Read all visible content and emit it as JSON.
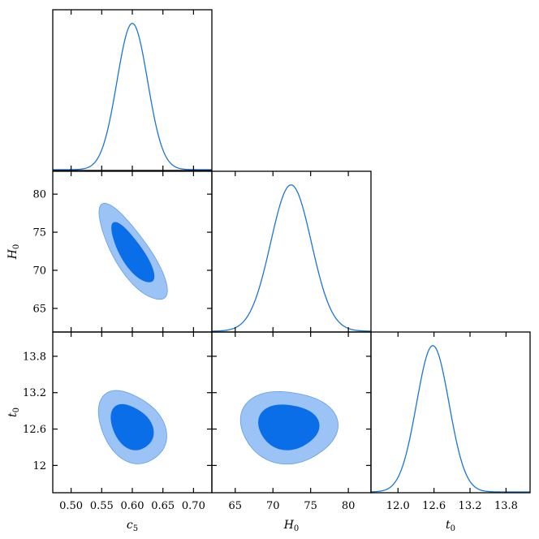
{
  "colors": {
    "line": "#1a76d8",
    "inner": "#0a6ee8",
    "outer": "#9cc3f5",
    "outer_edge": "#5f9fe8"
  },
  "chart_data": {
    "type": "triangle_corner_plot",
    "parameters": [
      {
        "key": "c5",
        "symbol": "c",
        "subscript": "5",
        "mean": 0.6,
        "sigma": 0.025,
        "range": [
          0.47,
          0.73
        ],
        "ticks": [
          0.5,
          0.55,
          0.6,
          0.65,
          0.7
        ],
        "tick_labels": [
          "0.50",
          "0.55",
          "0.60",
          "0.65",
          "0.70"
        ]
      },
      {
        "key": "H0",
        "symbol": "H",
        "subscript": "0",
        "mean": 72.4,
        "sigma": 2.7,
        "range": [
          61.9,
          83.0
        ],
        "ticks": [
          65,
          70,
          75,
          80
        ],
        "tick_labels": [
          "65",
          "70",
          "75",
          "80"
        ]
      },
      {
        "key": "t0",
        "symbol": "t",
        "subscript": "0",
        "mean": 12.58,
        "sigma": 0.27,
        "range": [
          11.55,
          14.2
        ],
        "ticks": [
          12.0,
          12.6,
          13.2,
          13.8
        ],
        "tick_labels": [
          "12.0",
          "12.6",
          "13.2",
          "13.8"
        ],
        "y_tick_labels": [
          "12",
          "12.6",
          "13.2",
          "13.8"
        ]
      }
    ],
    "marginals": [
      {
        "param": "c5"
      },
      {
        "param": "H0"
      },
      {
        "param": "t0"
      }
    ],
    "contours": [
      {
        "x": "c5",
        "y": "H0",
        "center": [
          0.6,
          72.2
        ],
        "correlation": -0.78,
        "sx": 0.022,
        "sy": 2.55,
        "levels": [
          "68%",
          "95%"
        ]
      },
      {
        "x": "c5",
        "y": "t0",
        "center": [
          0.599,
          12.63
        ],
        "correlation": -0.3,
        "sx": 0.022,
        "sy": 0.25,
        "levels": [
          "68%",
          "95%"
        ]
      },
      {
        "x": "H0",
        "y": "t0",
        "center": [
          72.0,
          12.64
        ],
        "correlation": -0.05,
        "sx": 2.55,
        "sy": 0.25,
        "levels": [
          "68%",
          "95%"
        ]
      }
    ]
  }
}
